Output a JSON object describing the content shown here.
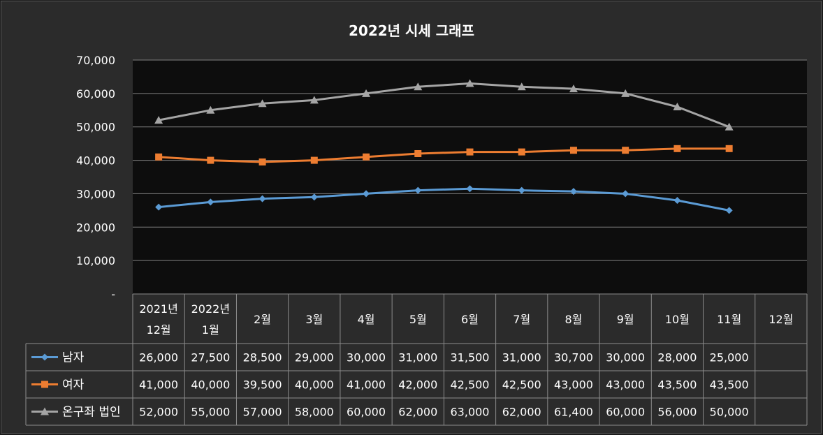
{
  "chart_data": {
    "type": "line",
    "title": "2022년 시세 그래프",
    "categories": [
      "2021년 12월",
      "2022년 1월",
      "2월",
      "3월",
      "4월",
      "5월",
      "6월",
      "7월",
      "8월",
      "9월",
      "10월",
      "11월",
      "12월"
    ],
    "category_lines": [
      [
        "2021년",
        "12월"
      ],
      [
        "2022년",
        "1월"
      ],
      [
        "2월"
      ],
      [
        "3월"
      ],
      [
        "4월"
      ],
      [
        "5월"
      ],
      [
        "6월"
      ],
      [
        "7월"
      ],
      [
        "8월"
      ],
      [
        "9월"
      ],
      [
        "10월"
      ],
      [
        "11월"
      ],
      [
        "12월"
      ]
    ],
    "series": [
      {
        "name": "남자",
        "color": "#5b9bd5",
        "marker": "diamond",
        "values": [
          26000,
          27500,
          28500,
          29000,
          30000,
          31000,
          31500,
          31000,
          30700,
          30000,
          28000,
          25000,
          null
        ]
      },
      {
        "name": "여자",
        "color": "#ed7d31",
        "marker": "square",
        "values": [
          41000,
          40000,
          39500,
          40000,
          41000,
          42000,
          42500,
          42500,
          43000,
          43000,
          43500,
          43500,
          null
        ]
      },
      {
        "name": "온구좌 법인",
        "color": "#a5a5a5",
        "marker": "triangle",
        "values": [
          52000,
          55000,
          57000,
          58000,
          60000,
          62000,
          63000,
          62000,
          61400,
          60000,
          56000,
          50000,
          null
        ]
      }
    ],
    "y_ticks": [
      0,
      10000,
      20000,
      30000,
      40000,
      50000,
      60000,
      70000
    ],
    "y_tick_labels": [
      "-",
      "10,000",
      "20,000",
      "30,000",
      "40,000",
      "50,000",
      "60,000",
      "70,000"
    ],
    "ylim": [
      0,
      70000
    ],
    "grid": true,
    "data_table": true,
    "legend": "in data table",
    "plot_background": "#0d0d0d",
    "chart_background": "#2b2b2b",
    "gridline_color": "#7f7f7f"
  }
}
